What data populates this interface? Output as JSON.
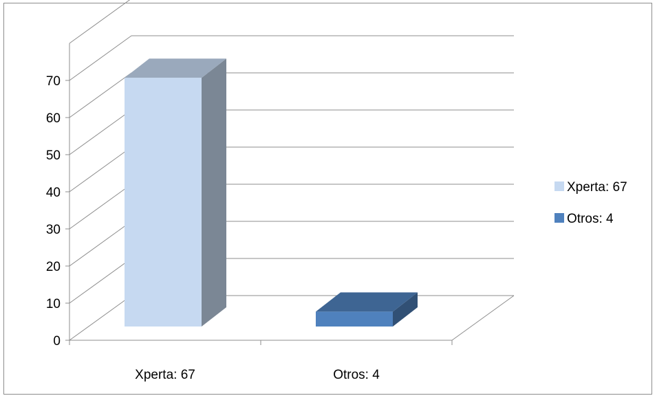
{
  "chart_data": {
    "type": "bar",
    "style": "3d-column",
    "categories": [
      "Xperta: 67",
      "Otros: 4"
    ],
    "values": [
      67,
      4
    ],
    "colors": [
      "#c6d9f1",
      "#4f81bd"
    ],
    "ylim": [
      0,
      80
    ],
    "ytick_step": 10,
    "yticks": [
      "0",
      "10",
      "20",
      "30",
      "40",
      "50",
      "60",
      "70"
    ],
    "grid": true,
    "legend": {
      "placement": "right",
      "entries": [
        {
          "label": "Xperta: 67",
          "color": "#c6d9f1"
        },
        {
          "label": "Otros: 4",
          "color": "#4f81bd"
        }
      ]
    },
    "title": "",
    "xlabel": "",
    "ylabel": ""
  }
}
